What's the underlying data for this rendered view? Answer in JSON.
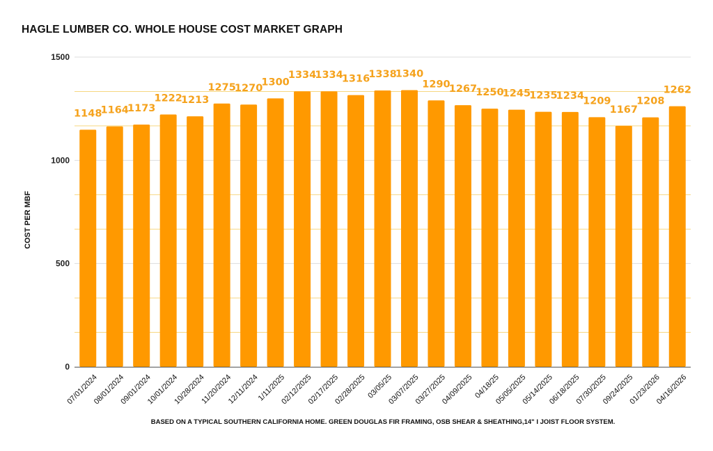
{
  "chart_data": {
    "type": "bar",
    "title": "HAGLE LUMBER CO. WHOLE HOUSE COST MARKET GRAPH",
    "xlabel": "",
    "ylabel": "COST PER MBF",
    "footnote": "BASED ON A TYPICAL SOUTHERN CALIFORNIA HOME.  GREEN DOUGLAS FIR FRAMING, OSB SHEAR & SHEATHING,14\" I JOIST FLOOR SYSTEM.",
    "ylim": [
      0,
      1500
    ],
    "yticks": [
      0,
      500,
      1000,
      1500
    ],
    "minor_gridlines_per_major": 2,
    "grid": true,
    "legend": "none",
    "colors": {
      "bar": "#FF9900",
      "data_label": "#F5A21C",
      "major_grid": "#DDDDDD",
      "minor_grid": "#F7D780",
      "axis": "#555555"
    },
    "categories": [
      "07/01/2024",
      "08/01/2024",
      "09/01/2024",
      "10/01/2024",
      "10/28/2024",
      "11/20/2024",
      "12/11/2024",
      "1/11/2025",
      "02/12/2025",
      "02/17/2025",
      "02/28/2025",
      "03/05/25",
      "03/07/2025",
      "03/27/2025",
      "04/09/2025",
      "04/18/25",
      "05/05/2025",
      "05/14/2025",
      "06/18/2025",
      "07/30/2025",
      "09/24/2025",
      "01/23/2026",
      "04/16/2026"
    ],
    "series": [
      {
        "name": "Cost per MBF",
        "values": [
          1148,
          1164,
          1173,
          1222,
          1213,
          1275,
          1270,
          1300,
          1334,
          1334,
          1316,
          1338,
          1340,
          1290,
          1267,
          1250,
          1245,
          1235,
          1234,
          1209,
          1167,
          1208,
          1262
        ]
      }
    ]
  }
}
